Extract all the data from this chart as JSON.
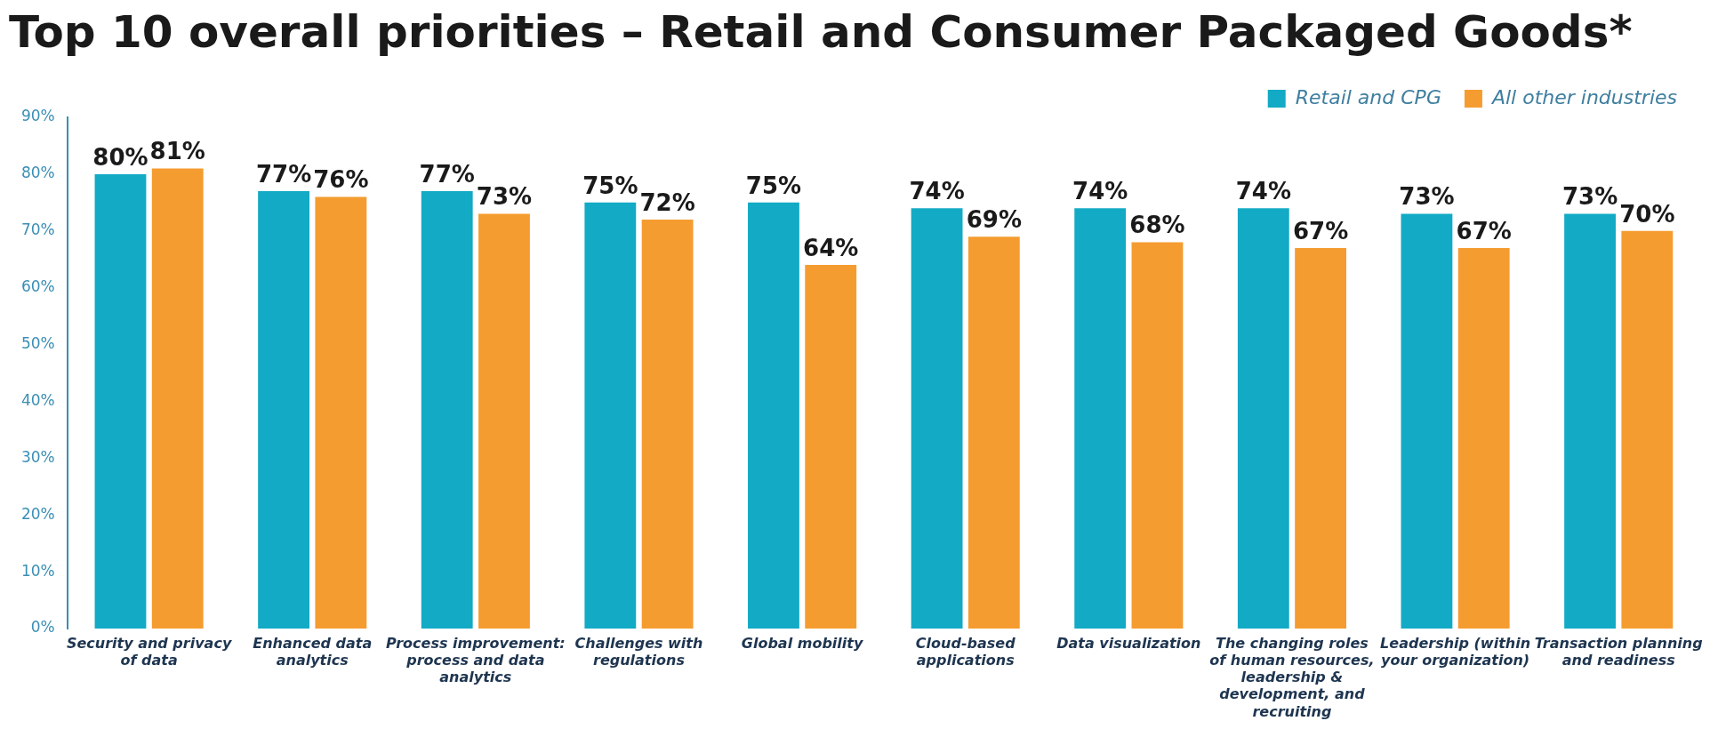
{
  "chart_data": {
    "type": "bar",
    "title": "Top 10 overall priorities – Retail and Consumer Packaged Goods*",
    "categories": [
      "Security and privacy of data",
      "Enhanced data analytics",
      "Process improvement: process and data analytics",
      "Challenges with regulations",
      "Global mobility",
      "Cloud-based applications",
      "Data visualization",
      "The changing roles of human resources, leadership & development, and recruiting",
      "Leadership (within your organization)",
      "Transaction planning and readiness"
    ],
    "series": [
      {
        "name": "Retail and CPG",
        "color": "#12aac5",
        "values": [
          80,
          77,
          77,
          75,
          75,
          74,
          74,
          74,
          73,
          73
        ],
        "value_labels": [
          "80%",
          "77%",
          "77%",
          "75%",
          "75%",
          "74%",
          "74%",
          "74%",
          "73%",
          "73%"
        ]
      },
      {
        "name": "All other industries",
        "color": "#f59c30",
        "values": [
          81,
          76,
          73,
          72,
          64,
          69,
          68,
          67,
          67,
          70
        ],
        "value_labels": [
          "81%",
          "76%",
          "73%",
          "72%",
          "64%",
          "69%",
          "68%",
          "67%",
          "67%",
          "70%"
        ]
      }
    ],
    "ylim": [
      0,
      90
    ],
    "yticks": [
      {
        "value": 0,
        "label": "0%"
      },
      {
        "value": 10,
        "label": "10%"
      },
      {
        "value": 20,
        "label": "20%"
      },
      {
        "value": 30,
        "label": "30%"
      },
      {
        "value": 40,
        "label": "40%"
      },
      {
        "value": 50,
        "label": "50%"
      },
      {
        "value": 60,
        "label": "60%"
      },
      {
        "value": 70,
        "label": "70%"
      },
      {
        "value": 80,
        "label": "80%"
      },
      {
        "value": 90,
        "label": "90%"
      }
    ],
    "grid": false,
    "legend": "top right"
  }
}
